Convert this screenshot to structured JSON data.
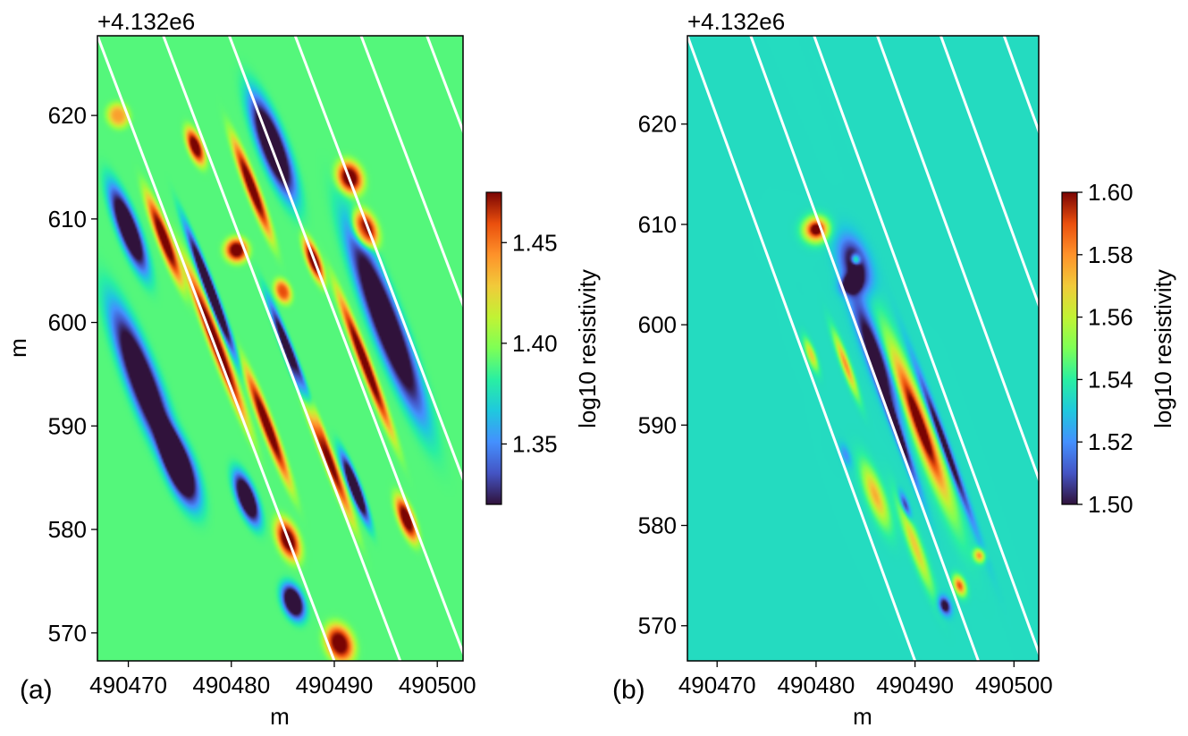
{
  "chart_data": [
    {
      "panel_label": "(a)",
      "type": "heatmap",
      "title": "",
      "offset_text": "+4.132e6",
      "xlabel": "m",
      "ylabel": "m",
      "xlim": [
        490467,
        490502.5
      ],
      "ylim": [
        4132567.3,
        4132627.7
      ],
      "x_ticks": [
        490470,
        490480,
        490490,
        490500
      ],
      "x_tick_labels": [
        "490470",
        "490480",
        "490490",
        "490500"
      ],
      "y_ticks": [
        570,
        580,
        590,
        600,
        610,
        620
      ],
      "y_tick_labels": [
        "570",
        "580",
        "590",
        "600",
        "610",
        "620"
      ],
      "y_offset": 4132000,
      "background_value": 1.39,
      "colorbar": {
        "label": "log10 resistivity",
        "colormap": "turbo",
        "range": [
          1.32,
          1.475
        ],
        "ticks": [
          1.35,
          1.4,
          1.45
        ],
        "tick_labels": [
          "1.35",
          "1.40",
          "1.45"
        ]
      },
      "survey_lines": {
        "color": "#ffffff",
        "x_at_y_4132627_7": [
          490467.0,
          490473.4,
          490479.8,
          490486.2,
          490492.6,
          490499.0
        ],
        "x_at_y_4132567_3": [
          490490.0,
          490496.4,
          490502.8,
          490509.2,
          490515.6,
          490522.0
        ]
      },
      "anomalies": [
        {
          "x": 490470.0,
          "y": 4132609.0,
          "len": 10,
          "wid": 2.2,
          "v": 1.3
        },
        {
          "x": 490473.5,
          "y": 4132608.0,
          "len": 10,
          "wid": 1.4,
          "v": 1.48
        },
        {
          "x": 490471.5,
          "y": 4132594.0,
          "len": 18,
          "wid": 3.2,
          "v": 1.3
        },
        {
          "x": 490475.0,
          "y": 4132586.0,
          "len": 9,
          "wid": 3.0,
          "v": 1.3
        },
        {
          "x": 490478.5,
          "y": 4132598.0,
          "len": 18,
          "wid": 1.4,
          "v": 1.48
        },
        {
          "x": 490483.5,
          "y": 4132590.0,
          "len": 13,
          "wid": 1.3,
          "v": 1.48
        },
        {
          "x": 490481.5,
          "y": 4132583.0,
          "len": 6,
          "wid": 2.0,
          "v": 1.3
        },
        {
          "x": 490485.5,
          "y": 4132579.0,
          "len": 4.5,
          "wid": 2.2,
          "v": 1.48
        },
        {
          "x": 490489.0,
          "y": 4132588.0,
          "len": 16,
          "wid": 1.2,
          "v": 1.48
        },
        {
          "x": 490484.0,
          "y": 4132617.0,
          "len": 12,
          "wid": 2.8,
          "v": 1.3
        },
        {
          "x": 490482.0,
          "y": 4132613.0,
          "len": 11,
          "wid": 1.3,
          "v": 1.48
        },
        {
          "x": 490476.5,
          "y": 4132617.0,
          "len": 4,
          "wid": 1.5,
          "v": 1.48
        },
        {
          "x": 490469.0,
          "y": 4132620.0,
          "len": 2.5,
          "wid": 2.2,
          "v": 1.44
        },
        {
          "x": 490488.0,
          "y": 4132606.0,
          "len": 5,
          "wid": 1.4,
          "v": 1.48
        },
        {
          "x": 490491.5,
          "y": 4132614.0,
          "len": 3.5,
          "wid": 2.6,
          "v": 1.48
        },
        {
          "x": 490493.0,
          "y": 4132609.0,
          "len": 4,
          "wid": 2.4,
          "v": 1.48
        },
        {
          "x": 490495.0,
          "y": 4132600.0,
          "len": 22,
          "wid": 3.2,
          "v": 1.3
        },
        {
          "x": 490493.0,
          "y": 4132596.0,
          "len": 16,
          "wid": 1.2,
          "v": 1.48
        },
        {
          "x": 490497.0,
          "y": 4132581.0,
          "len": 5,
          "wid": 1.6,
          "v": 1.48
        },
        {
          "x": 490490.5,
          "y": 4132569.0,
          "len": 4,
          "wid": 2.8,
          "v": 1.48
        },
        {
          "x": 490486.0,
          "y": 4132573.0,
          "len": 4,
          "wid": 2.2,
          "v": 1.3
        },
        {
          "x": 490478.0,
          "y": 4132603.0,
          "len": 15,
          "wid": 1.1,
          "v": 1.3
        },
        {
          "x": 490486.0,
          "y": 4132596.0,
          "len": 14,
          "wid": 1.1,
          "v": 1.3
        },
        {
          "x": 490480.5,
          "y": 4132607.0,
          "len": 2.5,
          "wid": 2.4,
          "v": 1.48
        },
        {
          "x": 490485.0,
          "y": 4132603.0,
          "len": 2.5,
          "wid": 1.6,
          "v": 1.46
        },
        {
          "x": 490492.0,
          "y": 4132584.0,
          "len": 8,
          "wid": 1.2,
          "v": 1.3
        }
      ]
    },
    {
      "panel_label": "(b)",
      "type": "heatmap",
      "title": "",
      "offset_text": "+4.132e6",
      "xlabel": "m",
      "ylabel": "",
      "xlim": [
        490467,
        490502.5
      ],
      "ylim": [
        4132566.5,
        4132628.8
      ],
      "x_ticks": [
        490470,
        490480,
        490490,
        490500
      ],
      "x_tick_labels": [
        "490470",
        "490480",
        "490490",
        "490500"
      ],
      "y_ticks": [
        570,
        580,
        590,
        600,
        610,
        620
      ],
      "y_tick_labels": [
        "570",
        "580",
        "590",
        "600",
        "610",
        "620"
      ],
      "y_offset": 4132000,
      "background_value": 1.535,
      "colorbar": {
        "label": "log10 resistivity",
        "colormap": "turbo",
        "range": [
          1.5,
          1.6
        ],
        "ticks": [
          1.5,
          1.52,
          1.54,
          1.56,
          1.58,
          1.6
        ],
        "tick_labels": [
          "1.50",
          "1.52",
          "1.54",
          "1.56",
          "1.58",
          "1.60"
        ]
      },
      "survey_lines": {
        "color": "#ffffff",
        "x_at_y_4132628_8": [
          490467.0,
          490473.4,
          490479.8,
          490486.2,
          490492.6,
          490499.0
        ],
        "x_at_y_4132566_5": [
          490490.0,
          490496.4,
          490502.8,
          490509.2,
          490515.6,
          490522.0
        ]
      },
      "anomalies": [
        {
          "x": 490480.0,
          "y": 4132609.5,
          "len": 2.5,
          "wid": 2.6,
          "v": 1.61
        },
        {
          "x": 490484.0,
          "y": 4132606.0,
          "len": 6,
          "wid": 2.8,
          "v": 1.49
        },
        {
          "x": 490483.5,
          "y": 4132604.0,
          "len": 2.0,
          "wid": 2.2,
          "v": 1.49
        },
        {
          "x": 490484.0,
          "y": 4132606.5,
          "len": 1.2,
          "wid": 1.0,
          "v": 1.58
        },
        {
          "x": 490486.0,
          "y": 4132597.0,
          "len": 14,
          "wid": 2.0,
          "v": 1.49
        },
        {
          "x": 490483.0,
          "y": 4132596.0,
          "len": 7,
          "wid": 0.9,
          "v": 1.58
        },
        {
          "x": 490479.5,
          "y": 4132597.0,
          "len": 3.5,
          "wid": 0.9,
          "v": 1.57
        },
        {
          "x": 490490.5,
          "y": 4132590.0,
          "len": 18,
          "wid": 2.0,
          "v": 1.61
        },
        {
          "x": 490488.0,
          "y": 4132590.0,
          "len": 14,
          "wid": 0.9,
          "v": 1.49
        },
        {
          "x": 490493.0,
          "y": 4132588.0,
          "len": 18,
          "wid": 0.9,
          "v": 1.49
        },
        {
          "x": 490486.0,
          "y": 4132583.0,
          "len": 7,
          "wid": 1.8,
          "v": 1.575
        },
        {
          "x": 490490.0,
          "y": 4132578.0,
          "len": 10,
          "wid": 1.3,
          "v": 1.57
        },
        {
          "x": 490494.5,
          "y": 4132574.0,
          "len": 2.2,
          "wid": 1.2,
          "v": 1.59
        },
        {
          "x": 490496.5,
          "y": 4132577.0,
          "len": 1.5,
          "wid": 1.2,
          "v": 1.58
        },
        {
          "x": 490493.0,
          "y": 4132572.0,
          "len": 2.0,
          "wid": 1.2,
          "v": 1.49
        },
        {
          "x": 490489.0,
          "y": 4132582.0,
          "len": 3.0,
          "wid": 0.8,
          "v": 1.5
        },
        {
          "x": 490483.0,
          "y": 4132587.0,
          "len": 2.5,
          "wid": 1.0,
          "v": 1.52
        }
      ]
    }
  ]
}
